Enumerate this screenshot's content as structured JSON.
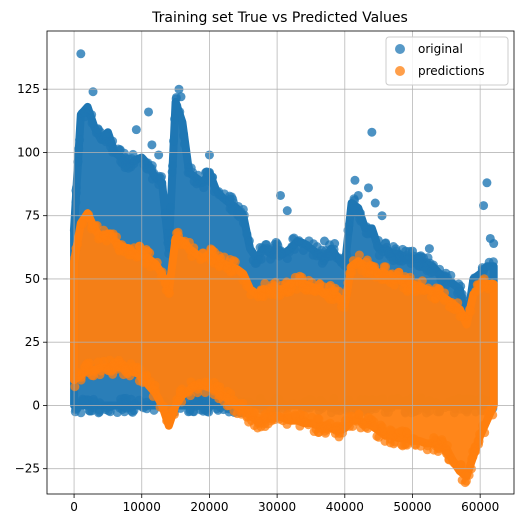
{
  "chart_data": {
    "type": "scatter",
    "title": "Training set True vs Predicted Values",
    "xlabel": "",
    "ylabel": "",
    "xlim": [
      -4000,
      65000
    ],
    "ylim": [
      -35,
      148
    ],
    "xticks": [
      0,
      10000,
      20000,
      30000,
      40000,
      50000,
      60000
    ],
    "xtick_labels": [
      "0",
      "10000",
      "20000",
      "30000",
      "40000",
      "50000",
      "60000"
    ],
    "yticks": [
      -25,
      0,
      25,
      50,
      75,
      100,
      125
    ],
    "ytick_labels": [
      "−25",
      "0",
      "25",
      "50",
      "75",
      "100",
      "125"
    ],
    "grid": true,
    "legend_position": "top-right",
    "series": [
      {
        "name": "original",
        "color": "#1f77b4",
        "alpha": 0.7,
        "envelope_x": [
          0,
          1000,
          2000,
          3000,
          4000,
          5000,
          6000,
          7000,
          8000,
          9000,
          10000,
          11000,
          12000,
          13000,
          14000,
          15000,
          16000,
          17000,
          18000,
          19000,
          20000,
          21000,
          22000,
          23000,
          24000,
          25000,
          26000,
          27000,
          28000,
          29000,
          30000,
          31000,
          32000,
          33000,
          34000,
          35000,
          36000,
          37000,
          38000,
          39000,
          40000,
          41000,
          42000,
          43000,
          44000,
          45000,
          46000,
          47000,
          48000,
          49000,
          50000,
          51000,
          52000,
          53000,
          54000,
          55000,
          56000,
          57000,
          58000,
          59000,
          60000,
          61000,
          62000
        ],
        "envelope_upper": [
          70,
          115,
          118,
          110,
          105,
          108,
          100,
          98,
          95,
          97,
          98,
          95,
          90,
          88,
          62,
          120,
          112,
          92,
          90,
          88,
          92,
          85,
          82,
          80,
          78,
          75,
          62,
          58,
          62,
          60,
          62,
          60,
          62,
          65,
          64,
          62,
          60,
          58,
          62,
          58,
          55,
          80,
          78,
          70,
          70,
          62,
          62,
          60,
          60,
          58,
          58,
          58,
          56,
          55,
          52,
          50,
          48,
          46,
          32,
          50,
          52,
          55,
          55
        ],
        "envelope_lower": [
          0,
          0,
          0,
          0,
          0,
          0,
          0,
          0,
          0,
          0,
          0,
          0,
          0,
          0,
          0,
          0,
          0,
          0,
          0,
          0,
          0,
          0,
          0,
          0,
          0,
          0,
          0,
          0,
          0,
          0,
          0,
          0,
          0,
          0,
          0,
          0,
          0,
          0,
          0,
          0,
          0,
          0,
          0,
          0,
          0,
          0,
          0,
          0,
          0,
          0,
          0,
          0,
          0,
          0,
          0,
          0,
          0,
          0,
          0,
          0,
          0,
          0,
          0
        ],
        "points": [
          {
            "x": 1000,
            "y": 139
          },
          {
            "x": 2800,
            "y": 124
          },
          {
            "x": 9200,
            "y": 109
          },
          {
            "x": 11000,
            "y": 116
          },
          {
            "x": 11500,
            "y": 103
          },
          {
            "x": 12500,
            "y": 99
          },
          {
            "x": 15500,
            "y": 125
          },
          {
            "x": 15800,
            "y": 122
          },
          {
            "x": 20000,
            "y": 99
          },
          {
            "x": 30500,
            "y": 83
          },
          {
            "x": 31500,
            "y": 77
          },
          {
            "x": 41500,
            "y": 89
          },
          {
            "x": 42000,
            "y": 83
          },
          {
            "x": 43500,
            "y": 86
          },
          {
            "x": 44000,
            "y": 108
          },
          {
            "x": 44500,
            "y": 80
          },
          {
            "x": 45500,
            "y": 75
          },
          {
            "x": 46000,
            "y": 64
          },
          {
            "x": 49000,
            "y": 61
          },
          {
            "x": 50000,
            "y": 61
          },
          {
            "x": 52500,
            "y": 62
          },
          {
            "x": 60500,
            "y": 79
          },
          {
            "x": 61000,
            "y": 88
          },
          {
            "x": 61500,
            "y": 66
          },
          {
            "x": 62000,
            "y": 64
          },
          {
            "x": 37000,
            "y": 65
          },
          {
            "x": 38500,
            "y": 64
          }
        ]
      },
      {
        "name": "predictions",
        "color": "#ff7f0e",
        "alpha": 0.7,
        "envelope_x": [
          0,
          1000,
          2000,
          3000,
          4000,
          5000,
          6000,
          7000,
          8000,
          9000,
          10000,
          11000,
          12000,
          13000,
          14000,
          15000,
          16000,
          17000,
          18000,
          19000,
          20000,
          21000,
          22000,
          23000,
          24000,
          25000,
          26000,
          27000,
          28000,
          29000,
          30000,
          31000,
          32000,
          33000,
          34000,
          35000,
          36000,
          37000,
          38000,
          39000,
          40000,
          41000,
          42000,
          43000,
          44000,
          45000,
          46000,
          47000,
          48000,
          49000,
          50000,
          51000,
          52000,
          53000,
          54000,
          55000,
          56000,
          57000,
          58000,
          59000,
          60000,
          61000,
          62000
        ],
        "envelope_upper": [
          57,
          72,
          76,
          70,
          66,
          68,
          65,
          63,
          62,
          60,
          60,
          58,
          56,
          52,
          45,
          66,
          65,
          62,
          60,
          58,
          60,
          58,
          56,
          55,
          54,
          52,
          46,
          44,
          46,
          45,
          46,
          46,
          48,
          49,
          48,
          47,
          46,
          44,
          45,
          43,
          40,
          55,
          57,
          55,
          55,
          52,
          52,
          50,
          50,
          48,
          48,
          47,
          46,
          45,
          44,
          42,
          40,
          38,
          32,
          44,
          46,
          48,
          48
        ],
        "envelope_lower": [
          10,
          12,
          14,
          14,
          15,
          15,
          15,
          15,
          14,
          13,
          12,
          8,
          5,
          0,
          -8,
          0,
          4,
          6,
          8,
          8,
          7,
          6,
          4,
          2,
          0,
          -2,
          -4,
          -6,
          -6,
          -5,
          -4,
          -5,
          -6,
          -6,
          -7,
          -7,
          -8,
          -8,
          -9,
          -10,
          -9,
          -6,
          -6,
          -7,
          -8,
          -10,
          -12,
          -12,
          -13,
          -13,
          -14,
          -14,
          -15,
          -15,
          -16,
          -17,
          -22,
          -26,
          -28,
          -20,
          -12,
          -6,
          0
        ]
      }
    ]
  }
}
